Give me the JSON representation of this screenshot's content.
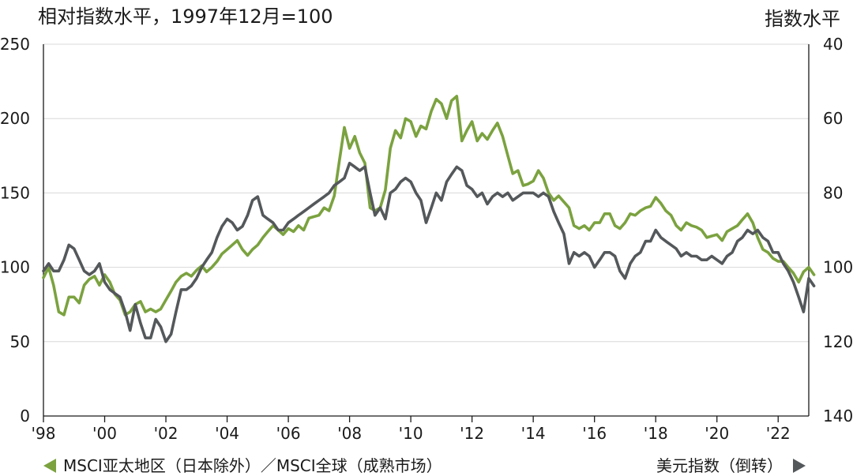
{
  "chart_data": {
    "type": "line",
    "title_left": "相对指数水平，1997年12月=100",
    "title_right": "指数水平",
    "x_ticks": [
      "'98",
      "'00",
      "'02",
      "'04",
      "'06",
      "'08",
      "'10",
      "'12",
      "'14",
      "'16",
      "'18",
      "'20",
      "'22"
    ],
    "x_range": [
      1998.0,
      2023.0
    ],
    "y_left": {
      "range": [
        0,
        250
      ],
      "ticks": [
        0,
        50,
        100,
        150,
        200,
        250
      ]
    },
    "y_right": {
      "range": [
        40,
        140
      ],
      "inverted": true,
      "ticks": [
        40,
        60,
        80,
        100,
        120,
        140
      ]
    },
    "grid": "horizontal",
    "legend_left": "MSCI亚太地区（日本除外）／MSCI全球（成熟市场）",
    "legend_right": "美元指数（倒转）",
    "colors": {
      "relative": "#7ba23f",
      "dollar": "#54585a",
      "grid": "#d8d8d8",
      "axis": "#1a1a1a"
    },
    "series": [
      {
        "name": "MSCI亚太地区（日本除外）／MSCI全球（成熟市场）",
        "axis": "left",
        "points": [
          [
            1998.0,
            93
          ],
          [
            1998.17,
            100
          ],
          [
            1998.33,
            88
          ],
          [
            1998.5,
            70
          ],
          [
            1998.67,
            68
          ],
          [
            1998.83,
            80
          ],
          [
            1999.0,
            80
          ],
          [
            1999.17,
            76
          ],
          [
            1999.33,
            88
          ],
          [
            1999.5,
            92
          ],
          [
            1999.67,
            94
          ],
          [
            1999.83,
            88
          ],
          [
            2000.0,
            95
          ],
          [
            2000.17,
            90
          ],
          [
            2000.33,
            82
          ],
          [
            2000.5,
            78
          ],
          [
            2000.67,
            68
          ],
          [
            2000.83,
            70
          ],
          [
            2001.0,
            75
          ],
          [
            2001.17,
            77
          ],
          [
            2001.33,
            70
          ],
          [
            2001.5,
            72
          ],
          [
            2001.67,
            70
          ],
          [
            2001.83,
            72
          ],
          [
            2002.0,
            78
          ],
          [
            2002.17,
            84
          ],
          [
            2002.33,
            90
          ],
          [
            2002.5,
            94
          ],
          [
            2002.67,
            96
          ],
          [
            2002.83,
            94
          ],
          [
            2003.0,
            98
          ],
          [
            2003.17,
            101
          ],
          [
            2003.33,
            97
          ],
          [
            2003.5,
            100
          ],
          [
            2003.67,
            104
          ],
          [
            2003.83,
            109
          ],
          [
            2004.0,
            112
          ],
          [
            2004.17,
            115
          ],
          [
            2004.33,
            118
          ],
          [
            2004.5,
            112
          ],
          [
            2004.67,
            108
          ],
          [
            2004.83,
            112
          ],
          [
            2005.0,
            115
          ],
          [
            2005.17,
            120
          ],
          [
            2005.33,
            124
          ],
          [
            2005.5,
            128
          ],
          [
            2005.67,
            125
          ],
          [
            2005.83,
            122
          ],
          [
            2006.0,
            126
          ],
          [
            2006.17,
            124
          ],
          [
            2006.33,
            128
          ],
          [
            2006.5,
            125
          ],
          [
            2006.67,
            133
          ],
          [
            2006.83,
            134
          ],
          [
            2007.0,
            135
          ],
          [
            2007.17,
            140
          ],
          [
            2007.33,
            138
          ],
          [
            2007.5,
            148
          ],
          [
            2007.67,
            172
          ],
          [
            2007.83,
            194
          ],
          [
            2008.0,
            180
          ],
          [
            2008.17,
            188
          ],
          [
            2008.33,
            177
          ],
          [
            2008.5,
            170
          ],
          [
            2008.67,
            140
          ],
          [
            2008.83,
            138
          ],
          [
            2009.0,
            140
          ],
          [
            2009.17,
            152
          ],
          [
            2009.33,
            180
          ],
          [
            2009.5,
            192
          ],
          [
            2009.67,
            187
          ],
          [
            2009.83,
            200
          ],
          [
            2010.0,
            198
          ],
          [
            2010.17,
            188
          ],
          [
            2010.33,
            195
          ],
          [
            2010.5,
            193
          ],
          [
            2010.67,
            205
          ],
          [
            2010.83,
            213
          ],
          [
            2011.0,
            210
          ],
          [
            2011.17,
            200
          ],
          [
            2011.33,
            212
          ],
          [
            2011.5,
            215
          ],
          [
            2011.67,
            185
          ],
          [
            2011.83,
            192
          ],
          [
            2012.0,
            198
          ],
          [
            2012.17,
            185
          ],
          [
            2012.33,
            190
          ],
          [
            2012.5,
            186
          ],
          [
            2012.67,
            192
          ],
          [
            2012.83,
            197
          ],
          [
            2013.0,
            188
          ],
          [
            2013.17,
            175
          ],
          [
            2013.33,
            163
          ],
          [
            2013.5,
            165
          ],
          [
            2013.67,
            155
          ],
          [
            2013.83,
            156
          ],
          [
            2014.0,
            158
          ],
          [
            2014.17,
            165
          ],
          [
            2014.33,
            160
          ],
          [
            2014.5,
            150
          ],
          [
            2014.67,
            145
          ],
          [
            2014.83,
            148
          ],
          [
            2015.0,
            144
          ],
          [
            2015.17,
            140
          ],
          [
            2015.33,
            128
          ],
          [
            2015.5,
            126
          ],
          [
            2015.67,
            128
          ],
          [
            2015.83,
            125
          ],
          [
            2016.0,
            130
          ],
          [
            2016.17,
            130
          ],
          [
            2016.33,
            136
          ],
          [
            2016.5,
            136
          ],
          [
            2016.67,
            128
          ],
          [
            2016.83,
            126
          ],
          [
            2017.0,
            130
          ],
          [
            2017.17,
            136
          ],
          [
            2017.33,
            135
          ],
          [
            2017.5,
            138
          ],
          [
            2017.67,
            140
          ],
          [
            2017.83,
            141
          ],
          [
            2018.0,
            147
          ],
          [
            2018.17,
            143
          ],
          [
            2018.33,
            138
          ],
          [
            2018.5,
            135
          ],
          [
            2018.67,
            128
          ],
          [
            2018.83,
            125
          ],
          [
            2019.0,
            130
          ],
          [
            2019.17,
            128
          ],
          [
            2019.33,
            127
          ],
          [
            2019.5,
            125
          ],
          [
            2019.67,
            120
          ],
          [
            2019.83,
            121
          ],
          [
            2020.0,
            122
          ],
          [
            2020.17,
            118
          ],
          [
            2020.33,
            124
          ],
          [
            2020.5,
            126
          ],
          [
            2020.67,
            128
          ],
          [
            2020.83,
            132
          ],
          [
            2021.0,
            136
          ],
          [
            2021.17,
            130
          ],
          [
            2021.33,
            120
          ],
          [
            2021.5,
            112
          ],
          [
            2021.67,
            110
          ],
          [
            2021.83,
            106
          ],
          [
            2022.0,
            104
          ],
          [
            2022.17,
            104
          ],
          [
            2022.33,
            100
          ],
          [
            2022.5,
            96
          ],
          [
            2022.67,
            90
          ],
          [
            2022.83,
            97
          ],
          [
            2023.0,
            100
          ],
          [
            2023.17,
            95
          ]
        ]
      },
      {
        "name": "美元指数（倒转）",
        "axis": "right",
        "points": [
          [
            1998.0,
            101
          ],
          [
            1998.17,
            99
          ],
          [
            1998.33,
            101
          ],
          [
            1998.5,
            101
          ],
          [
            1998.67,
            98
          ],
          [
            1998.83,
            94
          ],
          [
            1999.0,
            95
          ],
          [
            1999.17,
            98
          ],
          [
            1999.33,
            101
          ],
          [
            1999.5,
            102
          ],
          [
            1999.67,
            101
          ],
          [
            1999.83,
            99
          ],
          [
            2000.0,
            104
          ],
          [
            2000.17,
            106
          ],
          [
            2000.33,
            107
          ],
          [
            2000.5,
            108
          ],
          [
            2000.67,
            112
          ],
          [
            2000.83,
            117
          ],
          [
            2001.0,
            110
          ],
          [
            2001.17,
            115
          ],
          [
            2001.33,
            119
          ],
          [
            2001.5,
            119
          ],
          [
            2001.67,
            114
          ],
          [
            2001.83,
            116
          ],
          [
            2002.0,
            120
          ],
          [
            2002.17,
            118
          ],
          [
            2002.33,
            112
          ],
          [
            2002.5,
            106
          ],
          [
            2002.67,
            106
          ],
          [
            2002.83,
            105
          ],
          [
            2003.0,
            103
          ],
          [
            2003.17,
            100
          ],
          [
            2003.33,
            98
          ],
          [
            2003.5,
            96
          ],
          [
            2003.67,
            92
          ],
          [
            2003.83,
            89
          ],
          [
            2004.0,
            87
          ],
          [
            2004.17,
            88
          ],
          [
            2004.33,
            90
          ],
          [
            2004.5,
            89
          ],
          [
            2004.67,
            86
          ],
          [
            2004.83,
            82
          ],
          [
            2005.0,
            81
          ],
          [
            2005.17,
            86
          ],
          [
            2005.33,
            87
          ],
          [
            2005.5,
            88
          ],
          [
            2005.67,
            90
          ],
          [
            2005.83,
            90
          ],
          [
            2006.0,
            88
          ],
          [
            2006.17,
            87
          ],
          [
            2006.33,
            86
          ],
          [
            2006.5,
            85
          ],
          [
            2006.67,
            84
          ],
          [
            2006.83,
            83
          ],
          [
            2007.0,
            82
          ],
          [
            2007.17,
            81
          ],
          [
            2007.33,
            80
          ],
          [
            2007.5,
            78
          ],
          [
            2007.67,
            77
          ],
          [
            2007.83,
            76
          ],
          [
            2008.0,
            72
          ],
          [
            2008.17,
            73
          ],
          [
            2008.33,
            74
          ],
          [
            2008.5,
            73
          ],
          [
            2008.67,
            80
          ],
          [
            2008.83,
            86
          ],
          [
            2009.0,
            84
          ],
          [
            2009.17,
            87
          ],
          [
            2009.33,
            80
          ],
          [
            2009.5,
            79
          ],
          [
            2009.67,
            77
          ],
          [
            2009.83,
            76
          ],
          [
            2010.0,
            77
          ],
          [
            2010.17,
            80
          ],
          [
            2010.33,
            82
          ],
          [
            2010.5,
            88
          ],
          [
            2010.67,
            84
          ],
          [
            2010.83,
            80
          ],
          [
            2011.0,
            82
          ],
          [
            2011.17,
            77
          ],
          [
            2011.33,
            75
          ],
          [
            2011.5,
            73
          ],
          [
            2011.67,
            74
          ],
          [
            2011.83,
            78
          ],
          [
            2012.0,
            79
          ],
          [
            2012.17,
            81
          ],
          [
            2012.33,
            80
          ],
          [
            2012.5,
            83
          ],
          [
            2012.67,
            81
          ],
          [
            2012.83,
            80
          ],
          [
            2013.0,
            81
          ],
          [
            2013.17,
            80
          ],
          [
            2013.33,
            82
          ],
          [
            2013.5,
            81
          ],
          [
            2013.67,
            80
          ],
          [
            2013.83,
            80
          ],
          [
            2014.0,
            80
          ],
          [
            2014.17,
            81
          ],
          [
            2014.33,
            80
          ],
          [
            2014.5,
            81
          ],
          [
            2014.67,
            85
          ],
          [
            2014.83,
            88
          ],
          [
            2015.0,
            91
          ],
          [
            2015.17,
            99
          ],
          [
            2015.33,
            96
          ],
          [
            2015.5,
            97
          ],
          [
            2015.67,
            96
          ],
          [
            2015.83,
            97
          ],
          [
            2016.0,
            100
          ],
          [
            2016.17,
            98
          ],
          [
            2016.33,
            96
          ],
          [
            2016.5,
            96
          ],
          [
            2016.67,
            97
          ],
          [
            2016.83,
            101
          ],
          [
            2017.0,
            103
          ],
          [
            2017.17,
            99
          ],
          [
            2017.33,
            97
          ],
          [
            2017.5,
            96
          ],
          [
            2017.67,
            93
          ],
          [
            2017.83,
            93
          ],
          [
            2018.0,
            90
          ],
          [
            2018.17,
            92
          ],
          [
            2018.33,
            93
          ],
          [
            2018.5,
            94
          ],
          [
            2018.67,
            95
          ],
          [
            2018.83,
            97
          ],
          [
            2019.0,
            96
          ],
          [
            2019.17,
            97
          ],
          [
            2019.33,
            97
          ],
          [
            2019.5,
            98
          ],
          [
            2019.67,
            98
          ],
          [
            2019.83,
            97
          ],
          [
            2020.0,
            98
          ],
          [
            2020.17,
            99
          ],
          [
            2020.33,
            97
          ],
          [
            2020.5,
            96
          ],
          [
            2020.67,
            93
          ],
          [
            2020.83,
            92
          ],
          [
            2021.0,
            90
          ],
          [
            2021.17,
            91
          ],
          [
            2021.33,
            90
          ],
          [
            2021.5,
            92
          ],
          [
            2021.67,
            93
          ],
          [
            2021.83,
            96
          ],
          [
            2022.0,
            96
          ],
          [
            2022.17,
            99
          ],
          [
            2022.33,
            101
          ],
          [
            2022.5,
            104
          ],
          [
            2022.67,
            108
          ],
          [
            2022.83,
            112
          ],
          [
            2023.0,
            103
          ],
          [
            2023.17,
            105
          ]
        ]
      }
    ]
  }
}
